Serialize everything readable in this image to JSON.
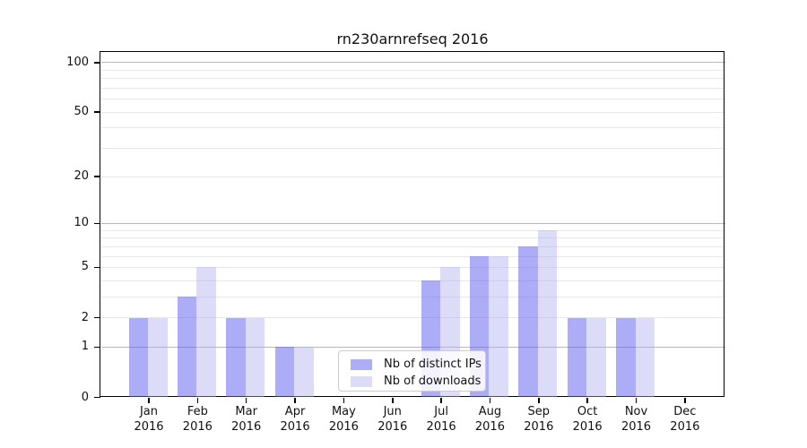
{
  "title": "rn230arnrefseq 2016",
  "colors": {
    "bar_distinct_ips": "rgba(95,95,240,0.52)",
    "bar_downloads": "rgba(175,175,242,0.44)",
    "grid_major": "#b8b8b8",
    "grid_minor": "#e7e7e7",
    "axis": "#000000",
    "legend_border": "#cccccc"
  },
  "legend": {
    "items": [
      {
        "label": "Nb of distinct IPs",
        "color_key": "bar_distinct_ips"
      },
      {
        "label": "Nb of downloads",
        "color_key": "bar_downloads"
      }
    ]
  },
  "x_axis": {
    "months": [
      "Jan",
      "Feb",
      "Mar",
      "Apr",
      "May",
      "Jun",
      "Jul",
      "Aug",
      "Sep",
      "Oct",
      "Nov",
      "Dec"
    ],
    "year": "2016"
  },
  "y_axis": {
    "tick_labels": [
      0,
      1,
      2,
      5,
      10,
      20,
      50,
      100
    ],
    "major_gridlines": [
      1,
      10,
      100
    ],
    "minor_gridlines": [
      2,
      3,
      4,
      5,
      6,
      7,
      8,
      9,
      20,
      30,
      40,
      50,
      60,
      70,
      80,
      90
    ]
  },
  "chart_data": {
    "type": "bar",
    "title": "rn230arnrefseq 2016",
    "categories": [
      "Jan 2016",
      "Feb 2016",
      "Mar 2016",
      "Apr 2016",
      "May 2016",
      "Jun 2016",
      "Jul 2016",
      "Aug 2016",
      "Sep 2016",
      "Oct 2016",
      "Nov 2016",
      "Dec 2016"
    ],
    "series": [
      {
        "name": "Nb of distinct IPs",
        "values": [
          2,
          3,
          2,
          1,
          0,
          0,
          4,
          6,
          7,
          2,
          2,
          0
        ]
      },
      {
        "name": "Nb of downloads",
        "values": [
          2,
          5,
          2,
          1,
          0,
          0,
          5,
          6,
          9,
          2,
          2,
          0
        ]
      }
    ],
    "yscale": "log10(1+v)",
    "yticks": [
      0,
      1,
      2,
      5,
      10,
      20,
      50,
      100
    ],
    "ylim": [
      0,
      105
    ],
    "xlabel": "",
    "ylabel": "",
    "grid": true,
    "legend_position": "inside lower-center"
  }
}
